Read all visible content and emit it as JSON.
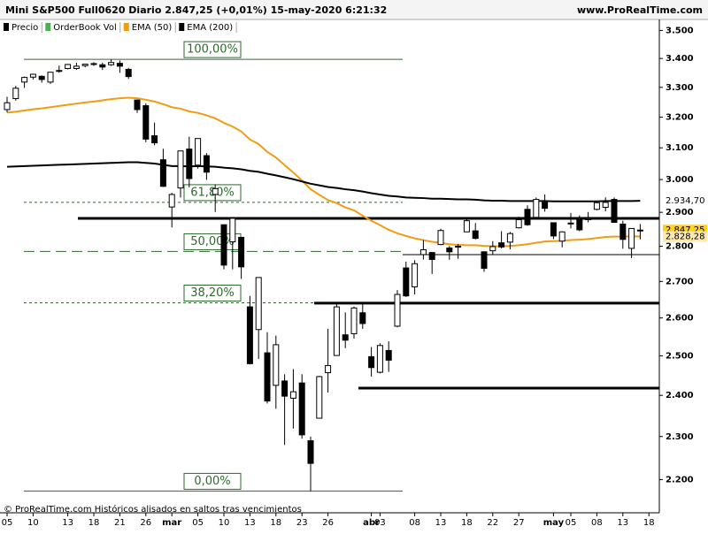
{
  "chart_data": {
    "type": "candlestick",
    "title": "Mini S&P500 Full0620 Diario 2.847,25 (+0,01%) 15-may-2020 6:21:32",
    "source": "www.ProRealTime.com",
    "footer": "© ProRealTime.com Históricos alisados en saltos tras vencimientos",
    "legend": [
      {
        "name": "Precio",
        "color": "#000000"
      },
      {
        "name": "OrderBook Vol",
        "color": "#4caf50"
      }
    ],
    "log": true,
    "ylim": [
      2155,
      3540
    ],
    "yticks": [
      {
        "value": 2200,
        "label": "2.200"
      },
      {
        "value": 2300,
        "label": "2.300"
      },
      {
        "value": 2400,
        "label": "2.400"
      },
      {
        "value": 2500,
        "label": "2.500"
      },
      {
        "value": 2600,
        "label": "2.600"
      },
      {
        "value": 2700,
        "label": "2.700"
      },
      {
        "value": 2800,
        "label": "2.800"
      },
      {
        "value": 2900,
        "label": "2.900"
      },
      {
        "value": 3000,
        "label": "3.000"
      },
      {
        "value": 3100,
        "label": "3.100"
      },
      {
        "value": 3200,
        "label": "3.200"
      },
      {
        "value": 3300,
        "label": "3.300"
      },
      {
        "value": 3400,
        "label": "3.400"
      },
      {
        "value": 3500,
        "label": "3.500"
      }
    ],
    "categories": [
      "05",
      null,
      null,
      "10",
      null,
      null,
      null,
      "13",
      null,
      null,
      "18",
      null,
      null,
      "21",
      null,
      null,
      "26",
      null,
      null,
      "mar",
      null,
      null,
      "05",
      null,
      null,
      "10",
      null,
      null,
      "13",
      null,
      null,
      "18",
      null,
      null,
      "23",
      null,
      null,
      "26",
      null,
      null,
      null,
      null,
      "abr",
      "03",
      null,
      null,
      null,
      "08",
      null,
      null,
      "13",
      null,
      null,
      "18",
      null,
      null,
      "22",
      null,
      null,
      "27",
      null,
      null,
      null,
      "may",
      null,
      "05",
      null,
      null,
      "08",
      null,
      null,
      "13",
      null,
      null,
      "18"
    ],
    "open": [
      3225,
      3262,
      3318,
      3335,
      3338,
      3318,
      3358,
      3365,
      3365,
      3375,
      3380,
      3378,
      3378,
      3383,
      3362,
      3257,
      3238,
      3139,
      3062,
      2916,
      2974,
      3096,
      3045,
      3075,
      2954,
      2863,
      2813,
      2826,
      2630,
      2569,
      2508,
      2425,
      2436,
      2393,
      2431,
      2290,
      2344,
      2457,
      2501,
      2555,
      2558,
      2614,
      2498,
      2458,
      2514,
      2578,
      2738,
      2685,
      2776,
      2782,
      2805,
      2795,
      2799,
      2842,
      2845,
      2784,
      2787,
      2810,
      2812,
      2854,
      2909,
      2885,
      2930,
      2869,
      2815,
      2868,
      2883,
      2878,
      2909,
      2915,
      2939,
      2865,
      2794,
      2847,
      null
    ],
    "high": [
      3268,
      3305,
      3337,
      3347,
      3341,
      3353,
      3375,
      3381,
      3385,
      3381,
      3387,
      3385,
      3397,
      3393,
      3367,
      3259,
      3246,
      3182,
      3097,
      2959,
      3090,
      3136,
      3130,
      3083,
      2985,
      2863,
      2882,
      2826,
      2660,
      2711,
      2562,
      2553,
      2453,
      2466,
      2453,
      2300,
      2449,
      2571,
      2637,
      2615,
      2631,
      2641,
      2523,
      2533,
      2538,
      2676,
      2756,
      2760,
      2818,
      2782,
      2851,
      2801,
      2807,
      2880,
      2868,
      2785,
      2815,
      2844,
      2842,
      2887,
      2921,
      2945,
      2954,
      2869,
      2844,
      2898,
      2891,
      2901,
      2932,
      2945,
      2945,
      2875,
      2852,
      2865,
      null
    ],
    "low": [
      3216,
      3255,
      3298,
      3327,
      3316,
      3312,
      3350,
      3362,
      3360,
      3369,
      3374,
      3360,
      3374,
      3350,
      3329,
      3214,
      3118,
      3108,
      2977,
      2855,
      2945,
      2976,
      3034,
      2999,
      2901,
      2734,
      2734,
      2707,
      2478,
      2492,
      2380,
      2367,
      2280,
      2319,
      2295,
      2174,
      2344,
      2407,
      2500,
      2520,
      2545,
      2571,
      2447,
      2455,
      2459,
      2575,
      2657,
      2664,
      2762,
      2721,
      2803,
      2761,
      2764,
      2842,
      2820,
      2727,
      2775,
      2794,
      2791,
      2852,
      2860,
      2882,
      2902,
      2821,
      2797,
      2852,
      2844,
      2870,
      2906,
      2903,
      2869,
      2793,
      2766,
      2820,
      null
    ],
    "close": [
      3248,
      3297,
      3334,
      3345,
      3327,
      3352,
      3357,
      3379,
      3373,
      3380,
      3382,
      3370,
      3386,
      3373,
      3337,
      3225,
      3128,
      3116,
      2979,
      2954,
      3090,
      3003,
      3130,
      3023,
      2972,
      2746,
      2882,
      2741,
      2480,
      2711,
      2386,
      2529,
      2398,
      2409,
      2304,
      2237,
      2447,
      2475,
      2630,
      2541,
      2627,
      2585,
      2470,
      2527,
      2489,
      2664,
      2660,
      2750,
      2790,
      2762,
      2846,
      2784,
      2800,
      2875,
      2823,
      2737,
      2799,
      2798,
      2837,
      2878,
      2863,
      2939,
      2912,
      2830,
      2842,
      2868,
      2848,
      2881,
      2929,
      2930,
      2870,
      2820,
      2852,
      2847.25,
      null
    ],
    "series": [
      {
        "name": "EMA (50)",
        "color": "#f39c12",
        "values": [
          3215,
          3218,
          3222,
          3226,
          3229,
          3233,
          3237,
          3241,
          3245,
          3249,
          3252,
          3256,
          3260,
          3263,
          3265,
          3263,
          3258,
          3252,
          3243,
          3233,
          3228,
          3219,
          3214,
          3206,
          3196,
          3181,
          3169,
          3153,
          3127,
          3112,
          3087,
          3069,
          3045,
          3022,
          2997,
          2970,
          2953,
          2937,
          2928,
          2915,
          2906,
          2890,
          2875,
          2862,
          2848,
          2838,
          2830,
          2823,
          2818,
          2813,
          2810,
          2806,
          2804,
          2803,
          2803,
          2801,
          2800,
          2800,
          2801,
          2803,
          2806,
          2810,
          2814,
          2815,
          2816,
          2818,
          2819,
          2821,
          2824,
          2827,
          2828,
          2828,
          2829,
          2828.28,
          null
        ]
      },
      {
        "name": "EMA (200)",
        "color": "#000000",
        "values": [
          3040,
          3041,
          3042,
          3043,
          3044,
          3045,
          3046,
          3047,
          3048,
          3049,
          3050,
          3051,
          3052,
          3053,
          3054,
          3054,
          3052,
          3050,
          3046,
          3042,
          3042,
          3041,
          3042,
          3041,
          3040,
          3037,
          3035,
          3032,
          3027,
          3024,
          3018,
          3013,
          3007,
          3001,
          2994,
          2987,
          2982,
          2977,
          2974,
          2970,
          2967,
          2963,
          2958,
          2954,
          2950,
          2948,
          2945,
          2944,
          2943,
          2941,
          2941,
          2940,
          2939,
          2939,
          2938,
          2936,
          2935,
          2935,
          2934,
          2934,
          2934,
          2934,
          2934,
          2933,
          2933,
          2933,
          2933,
          2933,
          2933,
          2934,
          2934,
          2934,
          2934,
          2934.7,
          null
        ]
      }
    ],
    "fibonacci": [
      {
        "label": "100,00%",
        "price": 3397
      },
      {
        "label": "61,80%",
        "price": 2930
      },
      {
        "label": "50,00%",
        "price": 2785
      },
      {
        "label": "38,20%",
        "price": 2641
      },
      {
        "label": "0,00%",
        "price": 2174
      }
    ],
    "levels": [
      2882,
      2640,
      2418,
      2776
    ],
    "price_labels": [
      {
        "value": 2934.7,
        "label": "2.934,70",
        "color": "#ffffff"
      },
      {
        "value": 2847.5,
        "label": "2.847,50",
        "color": "#f8d7dc"
      },
      {
        "value": 2847.25,
        "label": "2.847,25",
        "color": "#ffd21f"
      },
      {
        "value": 2828.28,
        "label": "2.828,28",
        "color": "#ffe9b0"
      }
    ]
  }
}
